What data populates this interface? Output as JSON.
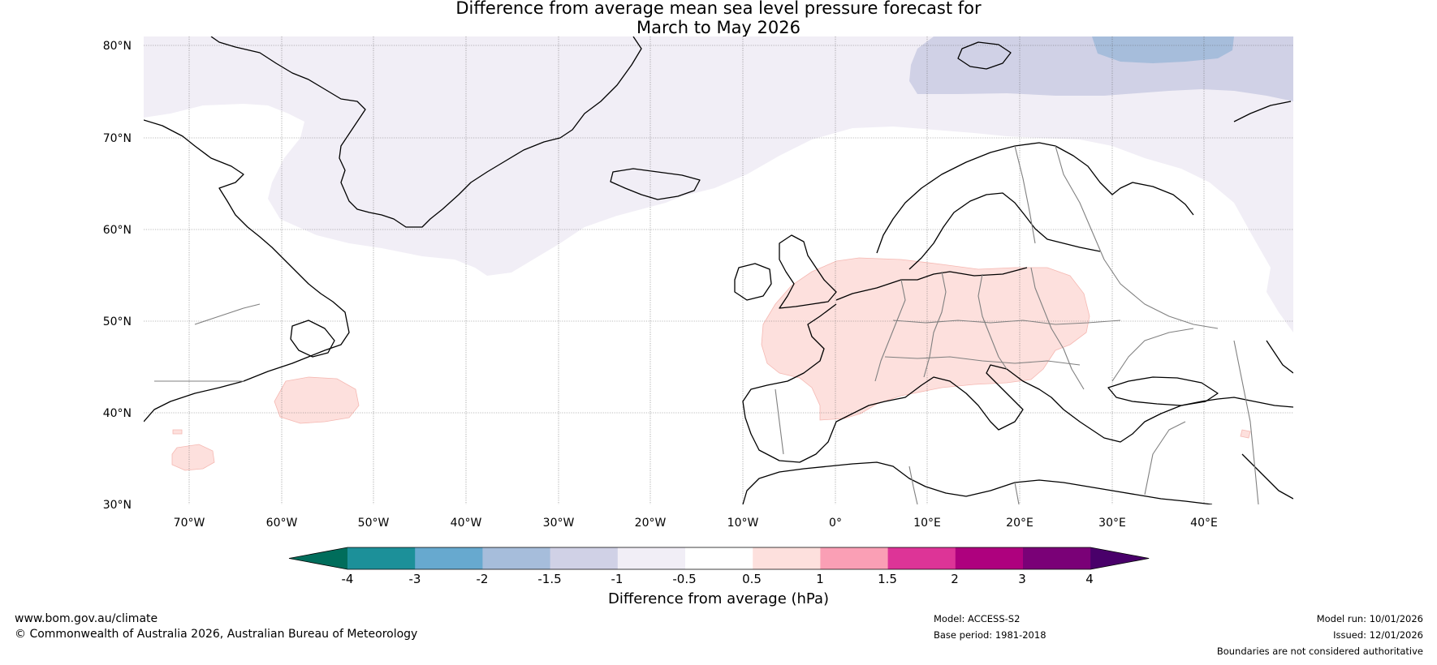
{
  "title_line1": "Difference from average mean sea level pressure forecast for",
  "title_line2": "March to May 2026",
  "map": {
    "lat_labels": [
      "80°N",
      "70°N",
      "60°N",
      "50°N",
      "40°N",
      "30°N"
    ],
    "lon_labels": [
      "70°W",
      "60°W",
      "50°W",
      "40°W",
      "30°W",
      "20°W",
      "10°W",
      "0°",
      "10°E",
      "20°E",
      "30°E",
      "40°E"
    ],
    "land_color": "#000000",
    "border_color": "#808080"
  },
  "legend": {
    "title": "Difference from average (hPa)",
    "ticks": [
      "-4",
      "-3",
      "-2",
      "-1.5",
      "-1",
      "-0.5",
      "0.5",
      "1",
      "1.5",
      "2",
      "3",
      "4"
    ],
    "colors": [
      "#006d5b",
      "#1c9099",
      "#67a9cf",
      "#a6bddb",
      "#d0d1e6",
      "#f1eef6",
      "#ffffff",
      "#fde0dd",
      "#fa9fb5",
      "#dd3497",
      "#ae017e",
      "#7a0177",
      "#49006a"
    ]
  },
  "footer": {
    "website": "www.bom.gov.au/climate",
    "copyright": "© Commonwealth of Australia 2026, Australian Bureau of Meteorology",
    "model": "Model: ACCESS-S2",
    "base_period": "Base period: 1981-2018",
    "model_run": "Model run: 10/01/2026",
    "issued": "Issued: 12/01/2026",
    "disclaimer": "Boundaries are not considered authoritative"
  }
}
